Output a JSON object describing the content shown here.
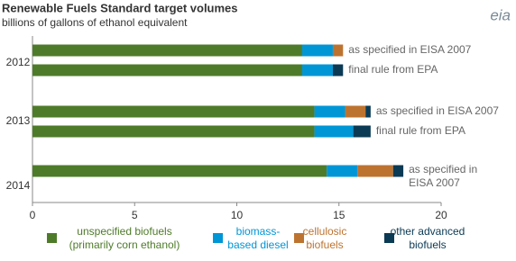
{
  "chart_data": {
    "type": "stacked-barh",
    "title": "Renewable Fuels Standard target volumes",
    "subtitle": "billions of gallons of ethanol equivalent",
    "logo": "eia",
    "series": [
      {
        "name": [
          "unspecified biofuels",
          "(primarily corn ethanol)"
        ],
        "color": "#4e7b29"
      },
      {
        "name": [
          "biomass-",
          "based diesel"
        ],
        "color": "#0096d6"
      },
      {
        "name": [
          "cellulosic",
          "biofuels"
        ],
        "color": "#bd7330"
      },
      {
        "name": [
          "other advanced",
          "biofuels"
        ],
        "color": "#0b3a54"
      }
    ],
    "groups": [
      {
        "label": "2012",
        "bars": [
          {
            "note": [
              "as specified in EISA 2007"
            ],
            "values": [
              13.2,
              1.5,
              0.5,
              0
            ]
          },
          {
            "note": [
              "final rule from EPA"
            ],
            "values": [
              13.2,
              1.5,
              0,
              0.5
            ]
          }
        ]
      },
      {
        "label": "2013",
        "bars": [
          {
            "note": [
              "as specified in EISA 2007"
            ],
            "values": [
              13.8,
              1.5,
              1.0,
              0.25
            ]
          },
          {
            "note": [
              "final rule from EPA"
            ],
            "values": [
              13.8,
              1.9,
              0,
              0.85
            ]
          }
        ]
      },
      {
        "label": "2014",
        "bars": [
          {
            "note": [
              "as specified in",
              "EISA 2007"
            ],
            "values": [
              14.4,
              1.5,
              1.75,
              0.5
            ]
          }
        ]
      }
    ],
    "xlim": [
      0,
      20
    ],
    "xticks": [
      0,
      5,
      10,
      15,
      20
    ]
  }
}
